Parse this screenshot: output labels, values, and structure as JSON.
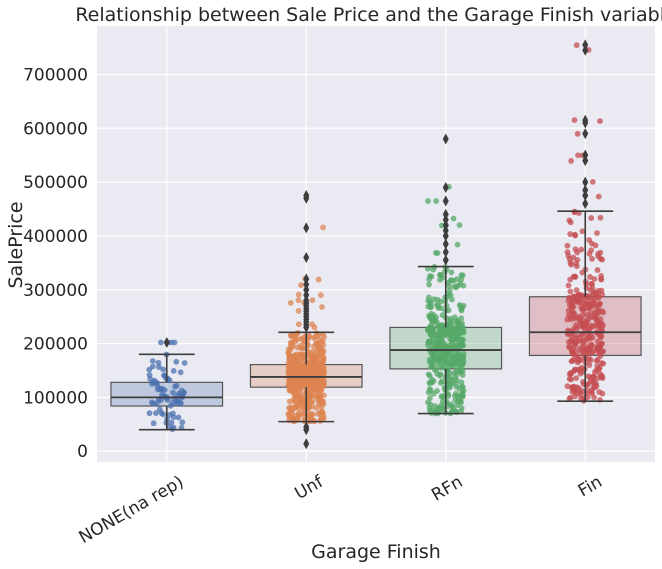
{
  "chart_data": {
    "type": "box",
    "title": "Relationship between Sale Price and the Garage Finish variable",
    "xlabel": "Garage Finish",
    "ylabel": "SalePrice",
    "ylim": [
      -20000,
      790000
    ],
    "yticks": [
      0,
      100000,
      200000,
      300000,
      400000,
      500000,
      600000,
      700000
    ],
    "ytick_labels": [
      "0",
      "100000",
      "200000",
      "300000",
      "400000",
      "500000",
      "600000",
      "700000"
    ],
    "grid": true,
    "categories": [
      "NONE(na rep)",
      "Unf",
      "RFn",
      "Fin"
    ],
    "series": [
      {
        "category": "NONE(na rep)",
        "color": "#4c72b0",
        "point_count": 81,
        "box": {
          "whisker_low": 40000,
          "q1": 84000,
          "median": 100000,
          "q3": 128000,
          "whisker_high": 180000
        },
        "outliers": [
          202000
        ],
        "points_range": [
          35000,
          202000
        ]
      },
      {
        "category": "Unf",
        "color": "#dd8452",
        "point_count": 605,
        "box": {
          "whisker_low": 55000,
          "q1": 119000,
          "median": 138000,
          "q3": 161000,
          "whisker_high": 221000
        },
        "outliers": [
          14000,
          40000,
          45000,
          230000,
          235000,
          240000,
          245000,
          250000,
          255000,
          260000,
          265000,
          270000,
          275000,
          280000,
          290000,
          300000,
          310000,
          320000,
          360000,
          415000,
          470000,
          475000
        ],
        "points_range": [
          13000,
          475000
        ]
      },
      {
        "category": "RFn",
        "color": "#55a868",
        "point_count": 422,
        "box": {
          "whisker_low": 70000,
          "q1": 153000,
          "median": 188000,
          "q3": 230000,
          "whisker_high": 343000
        },
        "outliers": [
          355000,
          370000,
          385000,
          400000,
          410000,
          420000,
          430000,
          440000,
          465000,
          490000,
          580000
        ],
        "points_range": [
          60000,
          585000
        ]
      },
      {
        "category": "Fin",
        "color": "#c44e52",
        "point_count": 352,
        "box": {
          "whisker_low": 93000,
          "q1": 178000,
          "median": 221000,
          "q3": 287000,
          "whisker_high": 446000
        },
        "outliers": [
          460000,
          475000,
          485000,
          500000,
          540000,
          550000,
          590000,
          610000,
          615000,
          745000,
          755000
        ],
        "points_range": [
          90000,
          755000
        ]
      }
    ]
  }
}
